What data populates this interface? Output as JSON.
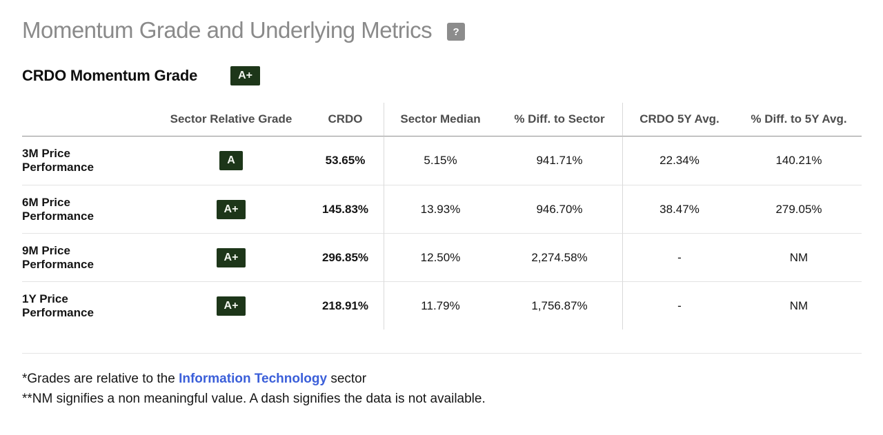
{
  "page": {
    "title": "Momentum Grade and Underlying Metrics",
    "help_icon_glyph": "?"
  },
  "section": {
    "heading": "CRDO Momentum Grade",
    "overall_grade": "A+"
  },
  "table": {
    "columns": [
      "",
      "Sector Relative Grade",
      "CRDO",
      "Sector Median",
      "% Diff. to Sector",
      "CRDO 5Y Avg.",
      "% Diff. to 5Y Avg."
    ],
    "rows": [
      {
        "label": "3M Price Performance",
        "grade": "A",
        "crdo": "53.65%",
        "sector_median": "5.15%",
        "diff_to_sector": "941.71%",
        "crdo_5y_avg": "22.34%",
        "diff_to_5y_avg": "140.21%"
      },
      {
        "label": "6M Price Performance",
        "grade": "A+",
        "crdo": "145.83%",
        "sector_median": "13.93%",
        "diff_to_sector": "946.70%",
        "crdo_5y_avg": "38.47%",
        "diff_to_5y_avg": "279.05%"
      },
      {
        "label": "9M Price Performance",
        "grade": "A+",
        "crdo": "296.85%",
        "sector_median": "12.50%",
        "diff_to_sector": "2,274.58%",
        "crdo_5y_avg": "-",
        "diff_to_5y_avg": "NM"
      },
      {
        "label": "1Y Price Performance",
        "grade": "A+",
        "crdo": "218.91%",
        "sector_median": "11.79%",
        "diff_to_sector": "1,756.87%",
        "crdo_5y_avg": "-",
        "diff_to_5y_avg": "NM"
      }
    ]
  },
  "footnotes": {
    "line1_prefix": "*Grades are relative to the ",
    "line1_link": "Information Technology",
    "line1_suffix": " sector",
    "line2": "**NM signifies a non meaningful value. A dash signifies the data is not available."
  },
  "colors": {
    "grade_badge_bg": "#1d3619",
    "grade_badge_text": "#f3f7f0",
    "title_gray": "#8a8a8a",
    "help_icon_bg": "#8c8c8c",
    "link_blue": "#3b5fd9",
    "header_rule": "#909090",
    "row_rule": "#e3e3e3"
  }
}
